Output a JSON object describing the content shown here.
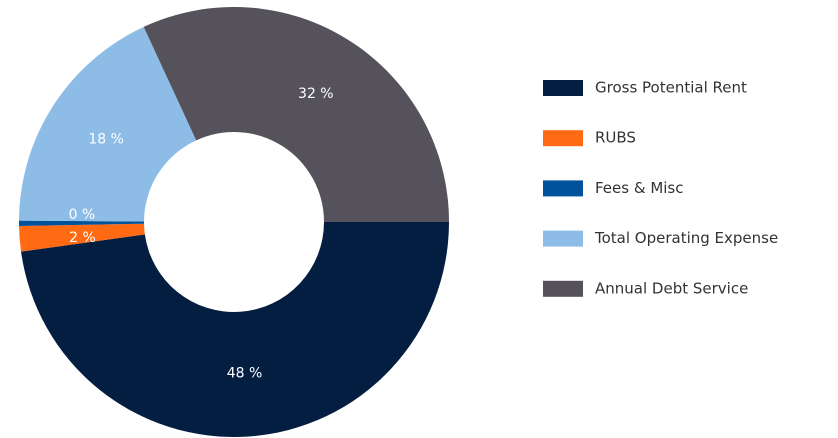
{
  "chart_data": {
    "type": "donut",
    "categories": [
      "Gross Potential Rent",
      "RUBS",
      "Fees & Misc",
      "Total Operating Expense",
      "Annual Debt Service"
    ],
    "values": [
      47.8,
      1.9,
      0.4,
      18,
      31.9
    ],
    "value_labels": [
      "48 %",
      "2 %",
      "0 %",
      "18 %",
      "32 %"
    ],
    "colors": [
      "#041e42",
      "#ff6a13",
      "#00539b",
      "#8dbde6",
      "#55525c"
    ],
    "legend": "right"
  }
}
